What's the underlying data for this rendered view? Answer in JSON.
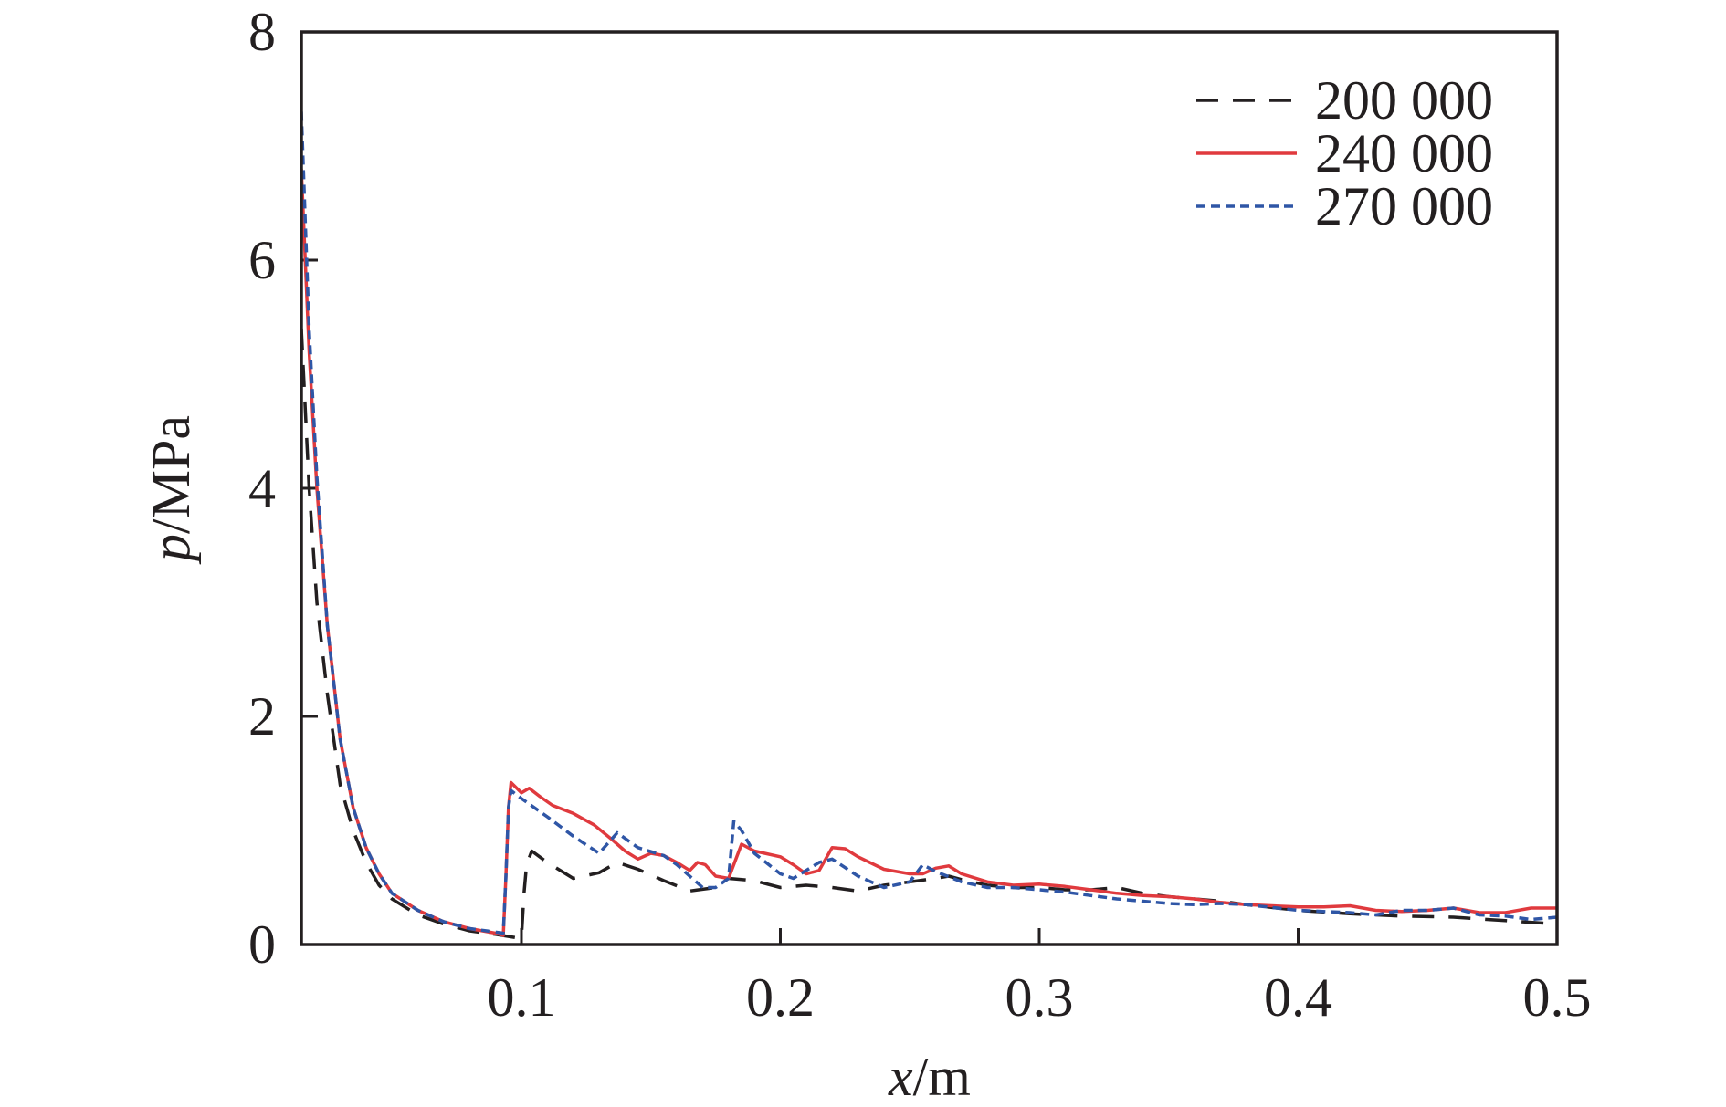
{
  "chart_data": {
    "type": "line",
    "xlabel": {
      "var": "x",
      "unit": "/m"
    },
    "ylabel": {
      "var": "p",
      "unit": "/MPa"
    },
    "xlim": [
      0.015,
      0.5
    ],
    "ylim": [
      0,
      8
    ],
    "xticks": [
      0.1,
      0.2,
      0.3,
      0.4,
      0.5
    ],
    "xtick_labels": [
      "0.1",
      "0.2",
      "0.3",
      "0.4",
      "0.5"
    ],
    "yticks": [
      0,
      2,
      4,
      6,
      8
    ],
    "ytick_labels": [
      "0",
      "2",
      "4",
      "6",
      "8"
    ],
    "legend_position": "top-right",
    "grid": false,
    "series": [
      {
        "name": "200 000",
        "color": "#231f20",
        "dash": "long-dash",
        "points": [
          [
            0.015,
            5.4
          ],
          [
            0.018,
            4.0
          ],
          [
            0.021,
            3.0
          ],
          [
            0.025,
            2.2
          ],
          [
            0.03,
            1.4
          ],
          [
            0.035,
            1.0
          ],
          [
            0.04,
            0.72
          ],
          [
            0.045,
            0.52
          ],
          [
            0.05,
            0.4
          ],
          [
            0.06,
            0.26
          ],
          [
            0.07,
            0.18
          ],
          [
            0.08,
            0.12
          ],
          [
            0.09,
            0.09
          ],
          [
            0.098,
            0.06
          ],
          [
            0.1,
            0.06
          ],
          [
            0.101,
            0.45
          ],
          [
            0.102,
            0.7
          ],
          [
            0.104,
            0.82
          ],
          [
            0.11,
            0.72
          ],
          [
            0.12,
            0.58
          ],
          [
            0.13,
            0.63
          ],
          [
            0.137,
            0.72
          ],
          [
            0.145,
            0.66
          ],
          [
            0.155,
            0.56
          ],
          [
            0.165,
            0.47
          ],
          [
            0.175,
            0.5
          ],
          [
            0.18,
            0.58
          ],
          [
            0.19,
            0.56
          ],
          [
            0.2,
            0.5
          ],
          [
            0.21,
            0.52
          ],
          [
            0.22,
            0.5
          ],
          [
            0.23,
            0.47
          ],
          [
            0.24,
            0.52
          ],
          [
            0.25,
            0.55
          ],
          [
            0.26,
            0.58
          ],
          [
            0.265,
            0.6
          ],
          [
            0.27,
            0.57
          ],
          [
            0.28,
            0.52
          ],
          [
            0.29,
            0.5
          ],
          [
            0.3,
            0.5
          ],
          [
            0.31,
            0.48
          ],
          [
            0.32,
            0.48
          ],
          [
            0.33,
            0.5
          ],
          [
            0.34,
            0.45
          ],
          [
            0.35,
            0.42
          ],
          [
            0.36,
            0.4
          ],
          [
            0.37,
            0.38
          ],
          [
            0.38,
            0.35
          ],
          [
            0.4,
            0.3
          ],
          [
            0.42,
            0.27
          ],
          [
            0.44,
            0.25
          ],
          [
            0.46,
            0.24
          ],
          [
            0.48,
            0.21
          ],
          [
            0.5,
            0.18
          ]
        ]
      },
      {
        "name": "240 000",
        "color": "#e03a3e",
        "dash": "solid",
        "points": [
          [
            0.015,
            6.8
          ],
          [
            0.018,
            5.2
          ],
          [
            0.021,
            4.0
          ],
          [
            0.025,
            2.8
          ],
          [
            0.03,
            1.8
          ],
          [
            0.035,
            1.2
          ],
          [
            0.04,
            0.85
          ],
          [
            0.045,
            0.62
          ],
          [
            0.05,
            0.45
          ],
          [
            0.06,
            0.3
          ],
          [
            0.07,
            0.2
          ],
          [
            0.08,
            0.14
          ],
          [
            0.09,
            0.1
          ],
          [
            0.093,
            0.08
          ],
          [
            0.094,
            0.6
          ],
          [
            0.095,
            1.2
          ],
          [
            0.096,
            1.42
          ],
          [
            0.1,
            1.33
          ],
          [
            0.103,
            1.37
          ],
          [
            0.107,
            1.3
          ],
          [
            0.112,
            1.22
          ],
          [
            0.12,
            1.15
          ],
          [
            0.128,
            1.05
          ],
          [
            0.135,
            0.92
          ],
          [
            0.14,
            0.82
          ],
          [
            0.145,
            0.75
          ],
          [
            0.15,
            0.8
          ],
          [
            0.155,
            0.78
          ],
          [
            0.16,
            0.72
          ],
          [
            0.165,
            0.65
          ],
          [
            0.168,
            0.72
          ],
          [
            0.171,
            0.7
          ],
          [
            0.175,
            0.6
          ],
          [
            0.18,
            0.58
          ],
          [
            0.185,
            0.88
          ],
          [
            0.19,
            0.82
          ],
          [
            0.2,
            0.77
          ],
          [
            0.205,
            0.7
          ],
          [
            0.21,
            0.62
          ],
          [
            0.215,
            0.65
          ],
          [
            0.22,
            0.85
          ],
          [
            0.225,
            0.84
          ],
          [
            0.23,
            0.77
          ],
          [
            0.24,
            0.66
          ],
          [
            0.25,
            0.62
          ],
          [
            0.255,
            0.62
          ],
          [
            0.26,
            0.67
          ],
          [
            0.265,
            0.69
          ],
          [
            0.27,
            0.62
          ],
          [
            0.28,
            0.55
          ],
          [
            0.29,
            0.52
          ],
          [
            0.3,
            0.53
          ],
          [
            0.31,
            0.51
          ],
          [
            0.32,
            0.48
          ],
          [
            0.33,
            0.45
          ],
          [
            0.34,
            0.43
          ],
          [
            0.35,
            0.42
          ],
          [
            0.36,
            0.4
          ],
          [
            0.37,
            0.37
          ],
          [
            0.38,
            0.35
          ],
          [
            0.4,
            0.33
          ],
          [
            0.41,
            0.33
          ],
          [
            0.42,
            0.34
          ],
          [
            0.43,
            0.3
          ],
          [
            0.44,
            0.29
          ],
          [
            0.45,
            0.3
          ],
          [
            0.46,
            0.32
          ],
          [
            0.47,
            0.28
          ],
          [
            0.48,
            0.28
          ],
          [
            0.49,
            0.32
          ],
          [
            0.5,
            0.32
          ]
        ]
      },
      {
        "name": "270 000",
        "color": "#2f56a6",
        "dash": "short-dash",
        "points": [
          [
            0.015,
            7.3
          ],
          [
            0.018,
            5.4
          ],
          [
            0.021,
            4.1
          ],
          [
            0.025,
            2.8
          ],
          [
            0.03,
            1.8
          ],
          [
            0.035,
            1.2
          ],
          [
            0.04,
            0.85
          ],
          [
            0.045,
            0.62
          ],
          [
            0.05,
            0.45
          ],
          [
            0.06,
            0.3
          ],
          [
            0.07,
            0.2
          ],
          [
            0.08,
            0.14
          ],
          [
            0.09,
            0.11
          ],
          [
            0.093,
            0.1
          ],
          [
            0.094,
            0.6
          ],
          [
            0.095,
            1.2
          ],
          [
            0.096,
            1.35
          ],
          [
            0.1,
            1.28
          ],
          [
            0.11,
            1.12
          ],
          [
            0.12,
            0.95
          ],
          [
            0.13,
            0.8
          ],
          [
            0.137,
            0.98
          ],
          [
            0.145,
            0.85
          ],
          [
            0.155,
            0.78
          ],
          [
            0.16,
            0.7
          ],
          [
            0.17,
            0.5
          ],
          [
            0.175,
            0.5
          ],
          [
            0.18,
            0.58
          ],
          [
            0.182,
            1.08
          ],
          [
            0.185,
            1.0
          ],
          [
            0.19,
            0.8
          ],
          [
            0.2,
            0.62
          ],
          [
            0.205,
            0.58
          ],
          [
            0.215,
            0.72
          ],
          [
            0.22,
            0.75
          ],
          [
            0.23,
            0.6
          ],
          [
            0.24,
            0.5
          ],
          [
            0.25,
            0.55
          ],
          [
            0.255,
            0.7
          ],
          [
            0.26,
            0.64
          ],
          [
            0.27,
            0.55
          ],
          [
            0.28,
            0.5
          ],
          [
            0.29,
            0.5
          ],
          [
            0.3,
            0.48
          ],
          [
            0.31,
            0.46
          ],
          [
            0.32,
            0.43
          ],
          [
            0.33,
            0.4
          ],
          [
            0.34,
            0.38
          ],
          [
            0.35,
            0.36
          ],
          [
            0.36,
            0.35
          ],
          [
            0.37,
            0.36
          ],
          [
            0.38,
            0.35
          ],
          [
            0.4,
            0.3
          ],
          [
            0.42,
            0.28
          ],
          [
            0.43,
            0.26
          ],
          [
            0.44,
            0.3
          ],
          [
            0.45,
            0.3
          ],
          [
            0.46,
            0.32
          ],
          [
            0.47,
            0.26
          ],
          [
            0.48,
            0.25
          ],
          [
            0.49,
            0.22
          ],
          [
            0.5,
            0.24
          ]
        ]
      }
    ]
  }
}
